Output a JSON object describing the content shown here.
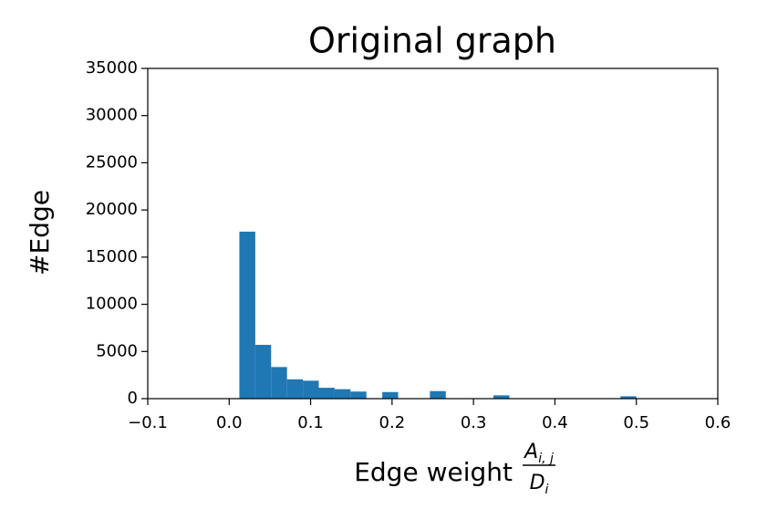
{
  "chart_data": {
    "type": "histogram",
    "title": "Original graph",
    "xlabel": "Edge weight",
    "xlabel_fraction": {
      "numerator": "A",
      "numerator_sub": "i, j",
      "denominator": "D",
      "denominator_sub": "i"
    },
    "ylabel": "#Edge",
    "bins": [
      0.0125,
      0.032,
      0.0515,
      0.071,
      0.0905,
      0.11,
      0.1295,
      0.149,
      0.1685,
      0.188,
      0.2075,
      0.227,
      0.2465,
      0.266,
      0.2855,
      0.305,
      0.3245,
      0.344,
      0.3635,
      0.383,
      0.4025,
      0.422,
      0.4415,
      0.461,
      0.4805,
      0.5
    ],
    "values": [
      17700,
      5700,
      3350,
      2050,
      1900,
      1150,
      1000,
      750,
      0,
      700,
      0,
      0,
      800,
      0,
      0,
      0,
      350,
      0,
      0,
      0,
      0,
      0,
      0,
      0,
      250
    ],
    "color": "#1f77b4",
    "xlim": [
      -0.1,
      0.6
    ],
    "xticks": [
      {
        "value": -0.1,
        "label": "−0.1"
      },
      {
        "value": 0.0,
        "label": "0.0"
      },
      0.1,
      0.2,
      0.3,
      0.4,
      0.5,
      0.6
    ],
    "ylim": [
      0,
      35000
    ],
    "yticks": [
      0,
      5000,
      10000,
      15000,
      20000,
      25000,
      30000,
      35000
    ],
    "grid": false
  }
}
